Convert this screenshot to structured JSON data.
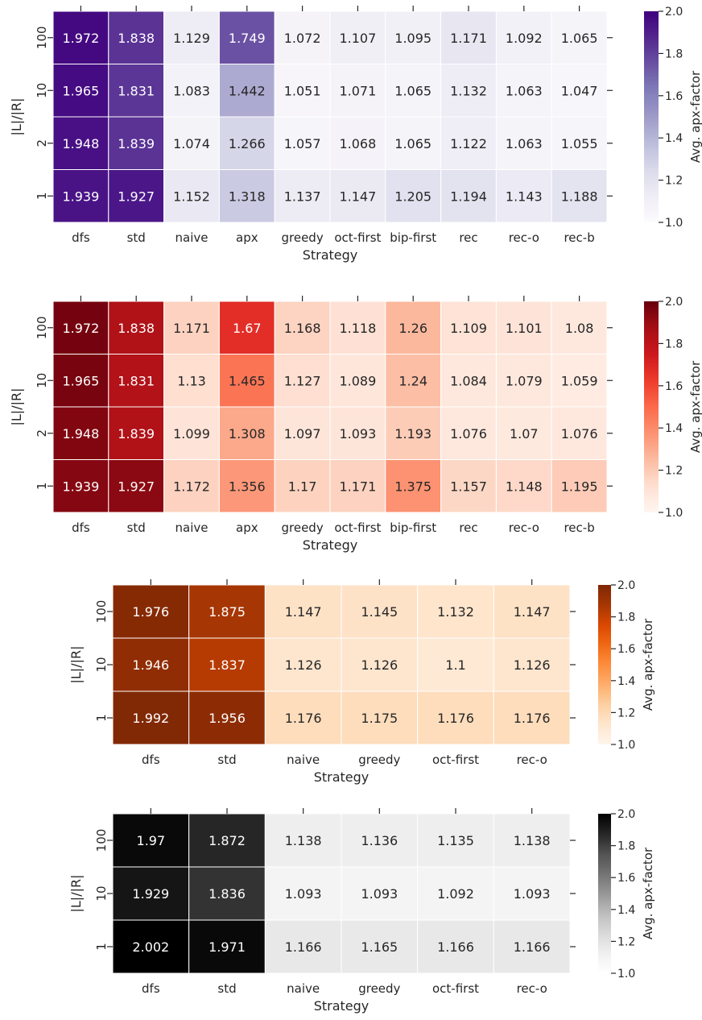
{
  "chart_data": [
    {
      "type": "heatmap",
      "colormap": "Purples",
      "xlabel": "Strategy",
      "ylabel": "|L|/|R|",
      "colorbar_label": "Avg. apx-factor",
      "vmin": 1.0,
      "vmax": 2.0,
      "colorbar_ticks": [
        "1.0",
        "1.2",
        "1.4",
        "1.6",
        "1.8",
        "2.0"
      ],
      "x": [
        "dfs",
        "std",
        "naive",
        "apx",
        "greedy",
        "oct-first",
        "bip-first",
        "rec",
        "rec-o",
        "rec-b"
      ],
      "y": [
        "100",
        "10",
        "2",
        "1"
      ],
      "values": [
        [
          "1.972",
          "1.838",
          "1.129",
          "1.749",
          "1.072",
          "1.107",
          "1.095",
          "1.171",
          "1.092",
          "1.065"
        ],
        [
          "1.965",
          "1.831",
          "1.083",
          "1.442",
          "1.051",
          "1.071",
          "1.065",
          "1.132",
          "1.063",
          "1.047"
        ],
        [
          "1.948",
          "1.839",
          "1.074",
          "1.266",
          "1.057",
          "1.068",
          "1.065",
          "1.122",
          "1.063",
          "1.055"
        ],
        [
          "1.939",
          "1.927",
          "1.152",
          "1.318",
          "1.137",
          "1.147",
          "1.205",
          "1.194",
          "1.143",
          "1.188"
        ]
      ]
    },
    {
      "type": "heatmap",
      "colormap": "Reds",
      "xlabel": "Strategy",
      "ylabel": "|L|/|R|",
      "colorbar_label": "Avg. apx-factor",
      "vmin": 1.0,
      "vmax": 2.0,
      "colorbar_ticks": [
        "1.0",
        "1.2",
        "1.4",
        "1.6",
        "1.8",
        "2.0"
      ],
      "x": [
        "dfs",
        "std",
        "naive",
        "apx",
        "greedy",
        "oct-first",
        "bip-first",
        "rec",
        "rec-o",
        "rec-b"
      ],
      "y": [
        "100",
        "10",
        "2",
        "1"
      ],
      "values": [
        [
          "1.972",
          "1.838",
          "1.171",
          "1.67",
          "1.168",
          "1.118",
          "1.26",
          "1.109",
          "1.101",
          "1.08"
        ],
        [
          "1.965",
          "1.831",
          "1.13",
          "1.465",
          "1.127",
          "1.089",
          "1.24",
          "1.084",
          "1.079",
          "1.059"
        ],
        [
          "1.948",
          "1.839",
          "1.099",
          "1.308",
          "1.097",
          "1.093",
          "1.193",
          "1.076",
          "1.07",
          "1.076"
        ],
        [
          "1.939",
          "1.927",
          "1.172",
          "1.356",
          "1.17",
          "1.171",
          "1.375",
          "1.157",
          "1.148",
          "1.195"
        ]
      ]
    },
    {
      "type": "heatmap",
      "colormap": "Oranges",
      "xlabel": "Strategy",
      "ylabel": "|L|/|R|",
      "colorbar_label": "Avg. apx-factor",
      "vmin": 1.0,
      "vmax": 2.0,
      "colorbar_ticks": [
        "1.0",
        "1.2",
        "1.4",
        "1.6",
        "1.8",
        "2.0"
      ],
      "x": [
        "dfs",
        "std",
        "naive",
        "greedy",
        "oct-first",
        "rec-o"
      ],
      "y": [
        "100",
        "10",
        "1"
      ],
      "values": [
        [
          "1.976",
          "1.875",
          "1.147",
          "1.145",
          "1.132",
          "1.147"
        ],
        [
          "1.946",
          "1.837",
          "1.126",
          "1.126",
          "1.1",
          "1.126"
        ],
        [
          "1.992",
          "1.956",
          "1.176",
          "1.175",
          "1.176",
          "1.176"
        ]
      ]
    },
    {
      "type": "heatmap",
      "colormap": "Greys",
      "xlabel": "Strategy",
      "ylabel": "|L|/|R|",
      "colorbar_label": "Avg. apx-factor",
      "vmin": 1.0,
      "vmax": 2.0,
      "colorbar_ticks": [
        "1.0",
        "1.2",
        "1.4",
        "1.6",
        "1.8",
        "2.0"
      ],
      "x": [
        "dfs",
        "std",
        "naive",
        "greedy",
        "oct-first",
        "rec-o"
      ],
      "y": [
        "100",
        "10",
        "1"
      ],
      "values": [
        [
          "1.97",
          "1.872",
          "1.138",
          "1.136",
          "1.135",
          "1.138"
        ],
        [
          "1.929",
          "1.836",
          "1.093",
          "1.093",
          "1.092",
          "1.093"
        ],
        [
          "2.002",
          "1.971",
          "1.166",
          "1.165",
          "1.166",
          "1.166"
        ]
      ]
    }
  ]
}
